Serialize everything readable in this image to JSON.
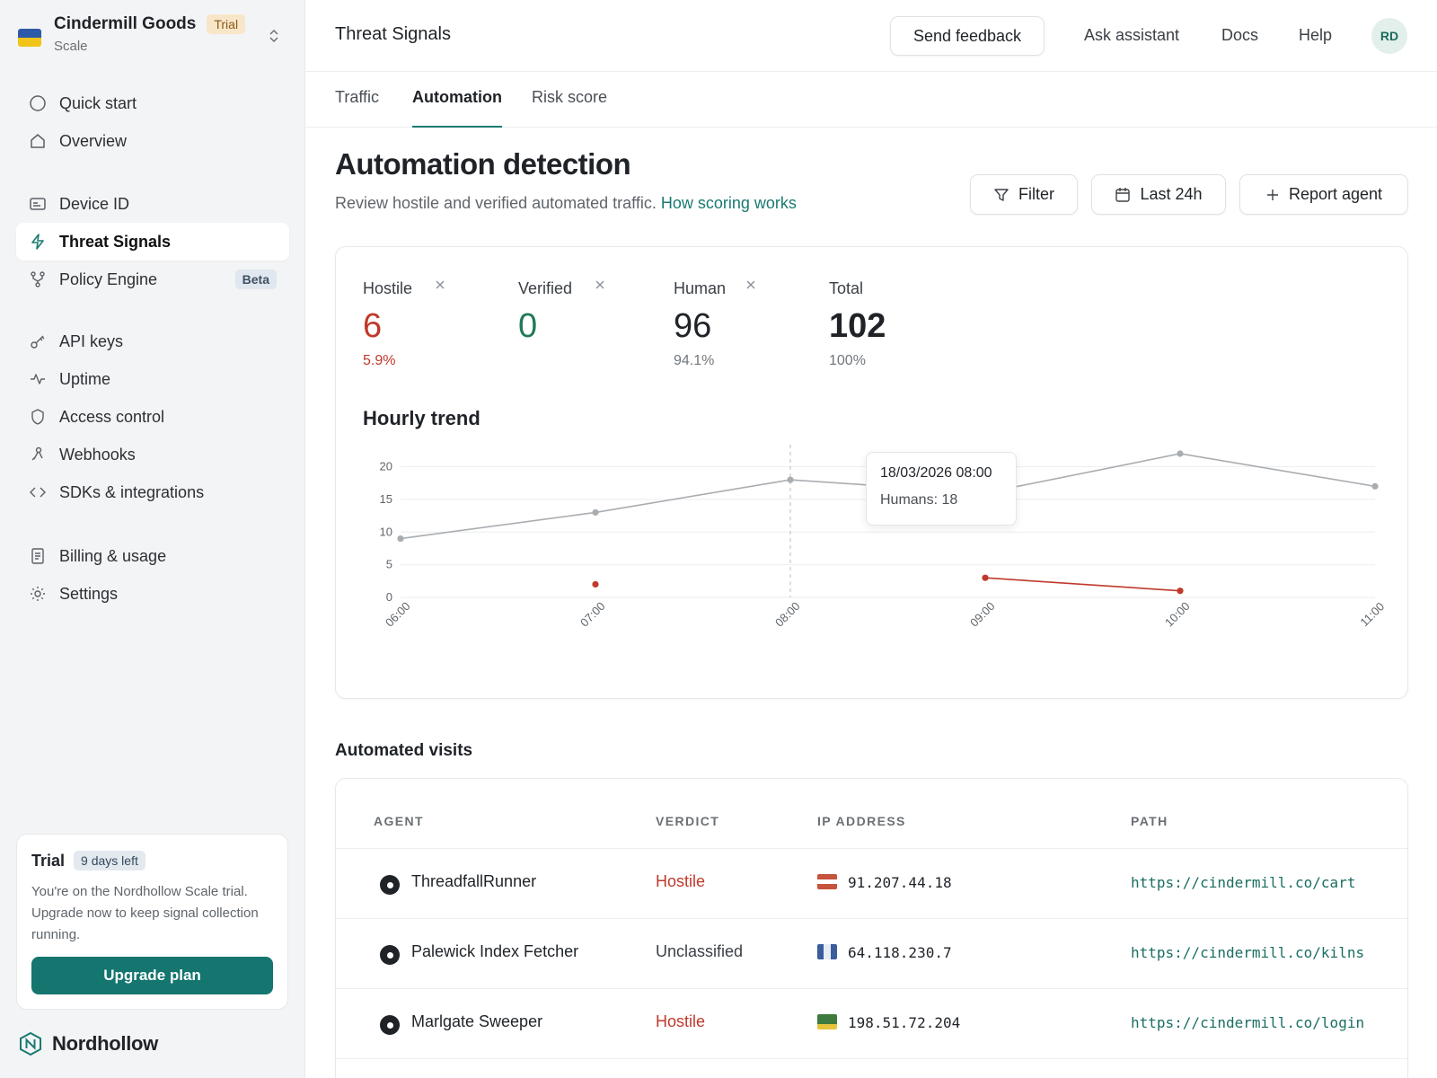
{
  "workspace": {
    "name": "Cindermill Goods",
    "badge": "Trial",
    "plan": "Scale"
  },
  "sidebar": {
    "items": [
      {
        "label": "Quick start",
        "icon": "circle-icon"
      },
      {
        "label": "Overview",
        "icon": "home-icon"
      },
      {
        "label": "Device ID",
        "icon": "id-card-icon"
      },
      {
        "label": "Threat Signals",
        "icon": "lightning-icon",
        "active": true
      },
      {
        "label": "Policy Engine",
        "icon": "branch-icon",
        "badge": "Beta"
      },
      {
        "label": "API keys",
        "icon": "key-icon"
      },
      {
        "label": "Uptime",
        "icon": "pulse-icon"
      },
      {
        "label": "Access control",
        "icon": "shield-icon"
      },
      {
        "label": "Webhooks",
        "icon": "webhook-icon"
      },
      {
        "label": "SDKs & integrations",
        "icon": "code-icon"
      },
      {
        "label": "Billing & usage",
        "icon": "document-icon"
      },
      {
        "label": "Settings",
        "icon": "gear-icon"
      }
    ]
  },
  "trial": {
    "title": "Trial",
    "days": "9 days left",
    "text": "You're on the Nordhollow Scale trial. Upgrade now to keep signal collection running.",
    "button": "Upgrade plan"
  },
  "brand": {
    "name": "Nordhollow"
  },
  "topbar": {
    "page": "Threat Signals",
    "feedback": "Send feedback",
    "assistant": "Ask assistant",
    "docs": "Docs",
    "help": "Help",
    "avatar": "RD"
  },
  "tabs": [
    "Traffic",
    "Automation",
    "Risk score"
  ],
  "header": {
    "title": "Automation detection",
    "subtitle": "Review hostile and verified automated traffic.",
    "link": "How scoring works",
    "filter": "Filter",
    "range": "Last 24h",
    "report": "Report agent"
  },
  "stats": [
    {
      "label": "Hostile",
      "value": "6",
      "pct": "5.9%",
      "color": "#c0392b"
    },
    {
      "label": "Verified",
      "value": "0",
      "pct": "",
      "color": "#1f7a55"
    },
    {
      "label": "Human",
      "value": "96",
      "pct": "94.1%",
      "color": "#1f2328"
    },
    {
      "label": "Total",
      "value": "102",
      "pct": "100%",
      "color": "#1f2328"
    }
  ],
  "chart_data": {
    "type": "line",
    "title": "Hourly trend",
    "categories": [
      "06:00",
      "07:00",
      "08:00",
      "09:00",
      "10:00",
      "11:00"
    ],
    "yticks": [
      0,
      5,
      10,
      15,
      20
    ],
    "ylim": [
      0,
      22
    ],
    "grid": true,
    "series": [
      {
        "key": "humans",
        "color": "#a9adb1",
        "values": [
          9,
          13,
          18,
          16,
          22,
          17
        ]
      },
      {
        "key": "hostile",
        "color": "#c0392b",
        "values": [
          null,
          2,
          null,
          3,
          1,
          null
        ]
      }
    ],
    "tooltip": {
      "date": "18/03/2026 08:00",
      "label": "Humans: 18",
      "category": "08:00"
    }
  },
  "visits": {
    "title": "Automated visits",
    "columns": [
      "AGENT",
      "VERDICT",
      "IP ADDRESS",
      "PATH"
    ],
    "rows": [
      {
        "agent": "ThreadfallRunner",
        "verdict": "Hostile",
        "ip": "91.207.44.18",
        "flag": [
          "#c6533b",
          "#ffffff",
          "#c6533b"
        ],
        "path": "https://cindermill.co/cart"
      },
      {
        "agent": "Palewick Index Fetcher",
        "verdict": "Unclassified",
        "ip": "64.118.230.7",
        "flag": [
          "#3a5d9c",
          "#e8edf5",
          "#3a5d9c"
        ],
        "path": "https://cindermill.co/kilns"
      },
      {
        "agent": "Marlgate Sweeper",
        "verdict": "Hostile",
        "ip": "198.51.72.204",
        "flag": [
          "#3f7a3f",
          "#3f7a3f",
          "#e6c43c"
        ],
        "path": "https://cindermill.co/login"
      }
    ]
  }
}
